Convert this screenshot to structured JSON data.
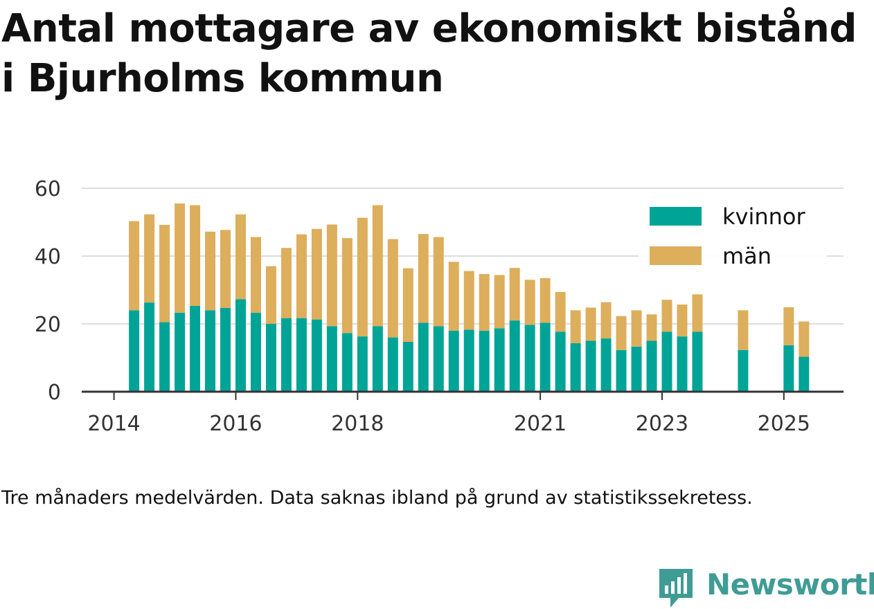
{
  "title": "Antal mottagare av ekonomiskt bistånd i Bjurholms kommun",
  "note": "Tre månaders medelvärden. Data saknas ibland på grund av statistikssekretess.",
  "brand": {
    "name": "Newsworthy",
    "icon": "newsworthy-logo-icon"
  },
  "colors": {
    "kvinnor": "#00a497",
    "man": "#ddae5c",
    "grid": "#dddddd",
    "axis": "#333333",
    "brand": "#3f9c95"
  },
  "chart_data": {
    "type": "bar",
    "stacked": true,
    "ylim": [
      0,
      60
    ],
    "yticks": [
      0,
      20,
      40,
      60
    ],
    "xtick_labels": [
      {
        "label": "2014",
        "x": 2014.0
      },
      {
        "label": "2016",
        "x": 2016.0
      },
      {
        "label": "2018",
        "x": 2018.0
      },
      {
        "label": "2021",
        "x": 2021.0
      },
      {
        "label": "2023",
        "x": 2023.0
      },
      {
        "label": "2025",
        "x": 2025.0
      }
    ],
    "xlim": [
      2013.47,
      2025.98
    ],
    "legend_position": "top-right",
    "grid": true,
    "x": [
      2014.33,
      2014.58,
      2014.83,
      2015.08,
      2015.33,
      2015.58,
      2015.83,
      2016.08,
      2016.33,
      2016.58,
      2016.83,
      2017.08,
      2017.33,
      2017.58,
      2017.83,
      2018.08,
      2018.33,
      2018.58,
      2018.83,
      2019.08,
      2019.33,
      2019.58,
      2019.83,
      2020.08,
      2020.33,
      2020.58,
      2020.83,
      2021.08,
      2021.33,
      2021.58,
      2021.83,
      2022.08,
      2022.33,
      2022.58,
      2022.83,
      2023.08,
      2023.33,
      2023.58,
      2024.33,
      2025.08,
      2025.33
    ],
    "series": [
      {
        "name": "kvinnor",
        "values": [
          24,
          26.3,
          20.5,
          23.3,
          25.3,
          24,
          24.7,
          27.3,
          23.3,
          20,
          21.7,
          21.7,
          21.3,
          19.3,
          17.3,
          16.3,
          19.3,
          16,
          14.7,
          20.3,
          19.3,
          18,
          18.3,
          18,
          18.7,
          21,
          19.7,
          20.3,
          17.7,
          14.3,
          15,
          15.7,
          12.3,
          13.3,
          15,
          17.7,
          16.3,
          17.7,
          12.3,
          13.7,
          10.3
        ]
      },
      {
        "name": "män",
        "values": [
          26.3,
          26,
          28.7,
          32.2,
          29.7,
          23.2,
          23,
          25,
          22.3,
          17,
          20.7,
          24.7,
          26.7,
          30,
          28,
          35,
          35.7,
          29,
          21.7,
          26.2,
          26.3,
          20.3,
          17.3,
          16.7,
          15.7,
          15.5,
          13.3,
          13.2,
          11.7,
          9.7,
          9.8,
          10.7,
          10,
          10.7,
          7.8,
          9.4,
          9.4,
          11,
          11.7,
          11.2,
          10.4
        ]
      }
    ]
  }
}
